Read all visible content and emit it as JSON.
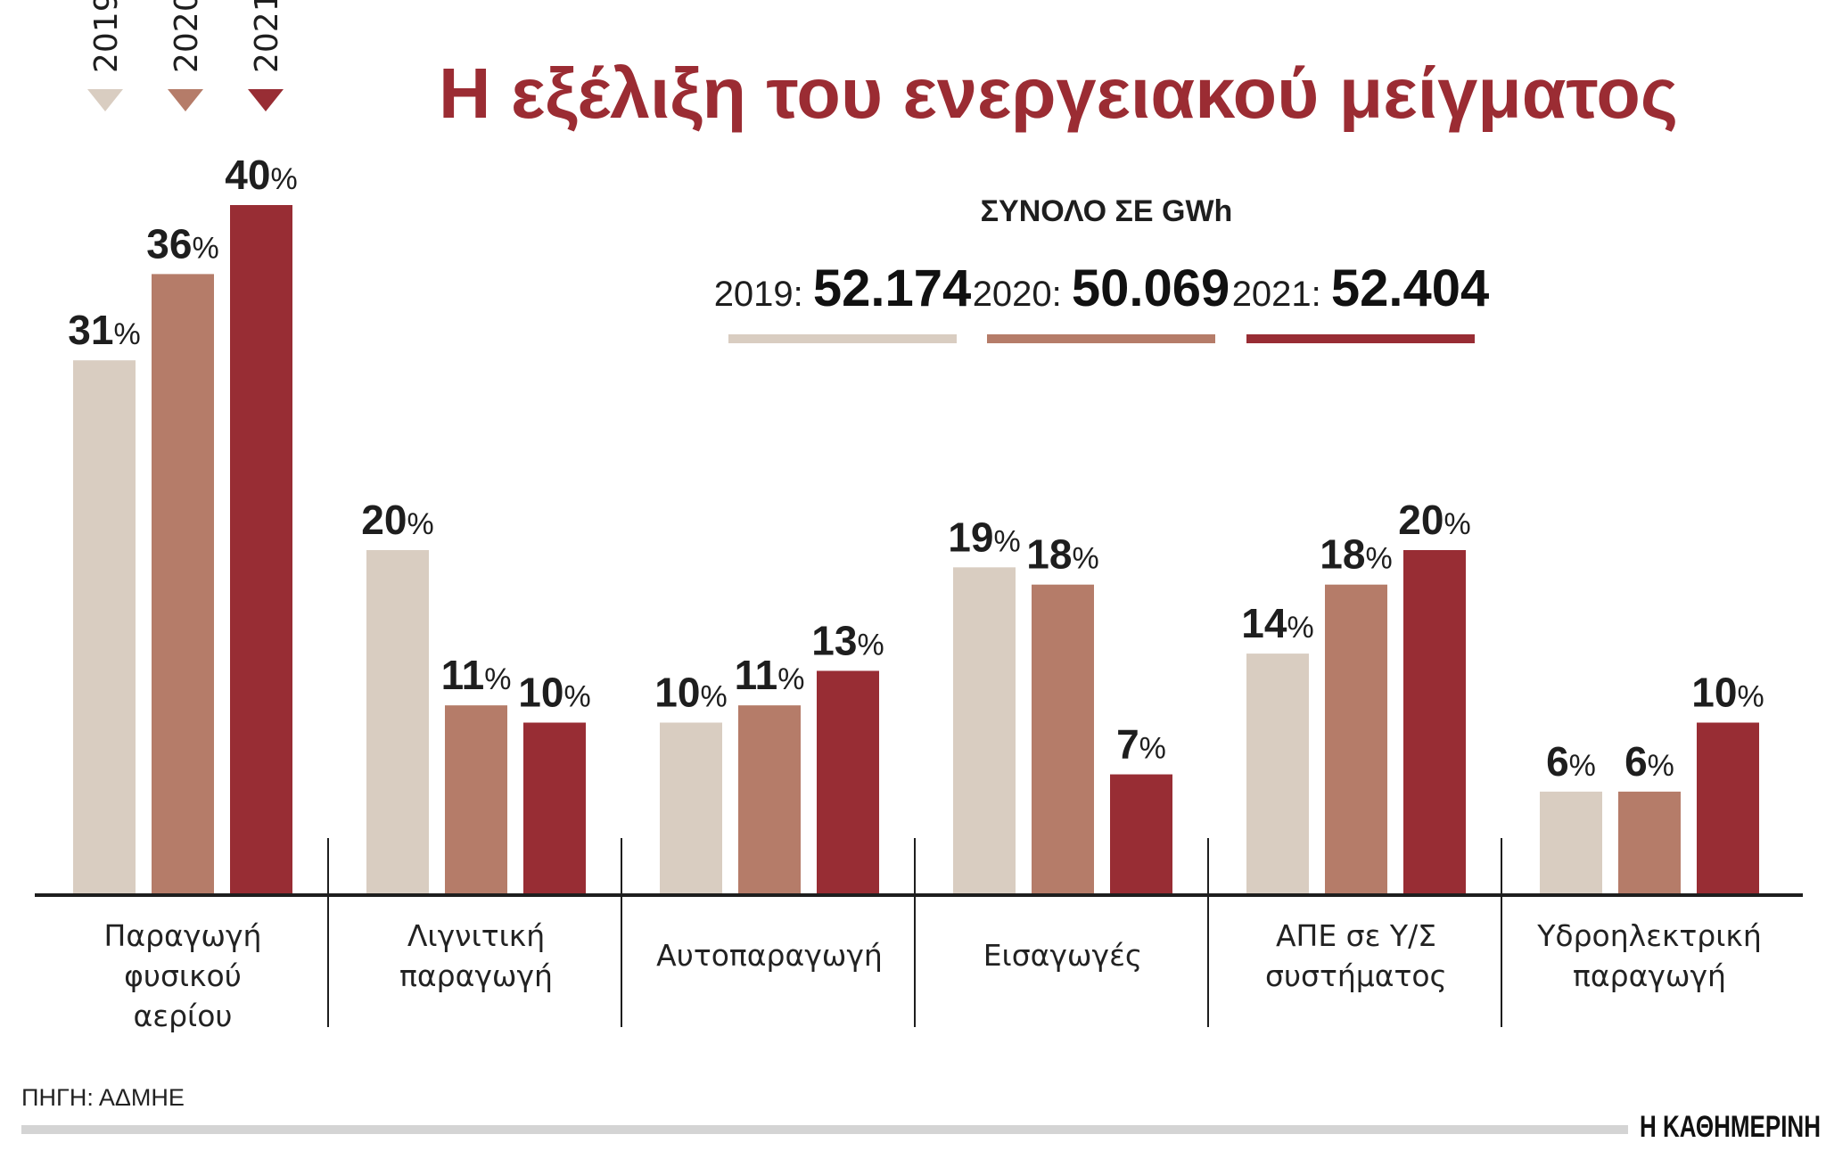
{
  "title": "Η εξέλιξη του ενεργειακού μείγματος",
  "totals": {
    "heading": "ΣΥΝΟΛΟ ΣΕ GWh",
    "items": [
      {
        "year": "2019:",
        "value": "52.174"
      },
      {
        "year": "2020:",
        "value": "50.069"
      },
      {
        "year": "2021:",
        "value": "52.404"
      }
    ]
  },
  "source": "ΠΗΓΗ: ΑΔΜΗΕ",
  "publisher": "Η ΚΑΘΗΜΕΡΙΝΗ",
  "chart_data": {
    "type": "bar",
    "title": "Η εξέλιξη του ενεργειακού μείγματος",
    "unit": "%",
    "categories": [
      [
        "Παραγωγή",
        "φυσικού",
        "αερίου"
      ],
      [
        "Λιγνιτική",
        "παραγωγή"
      ],
      [
        "Αυτοπαραγωγή"
      ],
      [
        "Εισαγωγές"
      ],
      [
        "ΑΠΕ σε Υ/Σ",
        "συστήματος"
      ],
      [
        "Υδροηλεκτρική",
        "παραγωγή"
      ]
    ],
    "series": [
      {
        "name": "2019",
        "color": "#d9cdc1",
        "values": [
          31,
          20,
          10,
          19,
          14,
          6
        ]
      },
      {
        "name": "2020",
        "color": "#b57c69",
        "values": [
          36,
          11,
          11,
          18,
          18,
          6
        ]
      },
      {
        "name": "2021",
        "color": "#982d34",
        "values": [
          40,
          10,
          13,
          7,
          20,
          10
        ]
      }
    ],
    "legend_placement": "top-left",
    "grid": false
  },
  "colors": {
    "title": "#9b2c33",
    "source_bar": "#d4d4d4"
  }
}
